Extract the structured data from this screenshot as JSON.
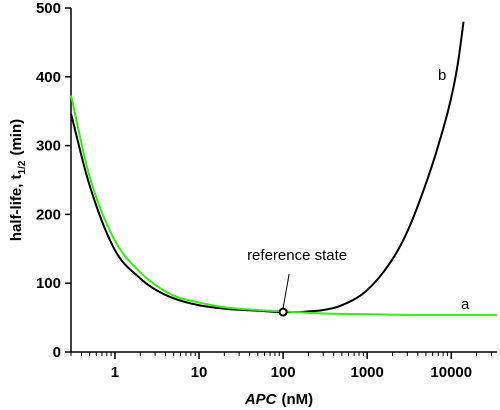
{
  "chart_data": {
    "type": "line",
    "xscale": "log",
    "xlim": [
      0.3,
      35000
    ],
    "ylim": [
      0,
      500
    ],
    "x_ticks": [
      1,
      10,
      100,
      1000,
      10000
    ],
    "x_tick_labels": [
      "1",
      "10",
      "100",
      "1000",
      "10000"
    ],
    "y_ticks": [
      0,
      100,
      200,
      300,
      400,
      500
    ],
    "y_tick_labels": [
      "0",
      "100",
      "200",
      "300",
      "400",
      "500"
    ],
    "xlabel_italic": "APC",
    "xlabel_unit": "(nM)",
    "ylabel_main": "half-life, t",
    "ylabel_sub": "1/2",
    "ylabel_unit": "(min)",
    "grid": false,
    "legend": "none",
    "series": [
      {
        "label": "a",
        "color": "#33ee11",
        "x": [
          0.3,
          0.5,
          1,
          2,
          3,
          5,
          10,
          20,
          50,
          100,
          300,
          1000,
          3000,
          10000,
          35000
        ],
        "y": [
          373,
          255,
          162,
          116,
          98,
          82,
          72,
          65,
          61,
          59,
          56,
          55,
          54,
          54,
          54
        ]
      },
      {
        "label": "b",
        "color": "#000000",
        "x": [
          0.3,
          0.5,
          1,
          2,
          3,
          5,
          10,
          20,
          50,
          100,
          150,
          200,
          300,
          500,
          1000,
          2000,
          3000,
          5000,
          7000,
          10000,
          12000,
          14000
        ],
        "y": [
          346,
          242,
          148,
          107,
          91,
          78,
          68,
          63,
          60,
          58,
          58,
          59,
          61,
          68,
          90,
          135,
          175,
          245,
          300,
          370,
          420,
          480
        ]
      }
    ],
    "annotation": {
      "text": "reference state",
      "x": 100,
      "y": 58
    }
  }
}
